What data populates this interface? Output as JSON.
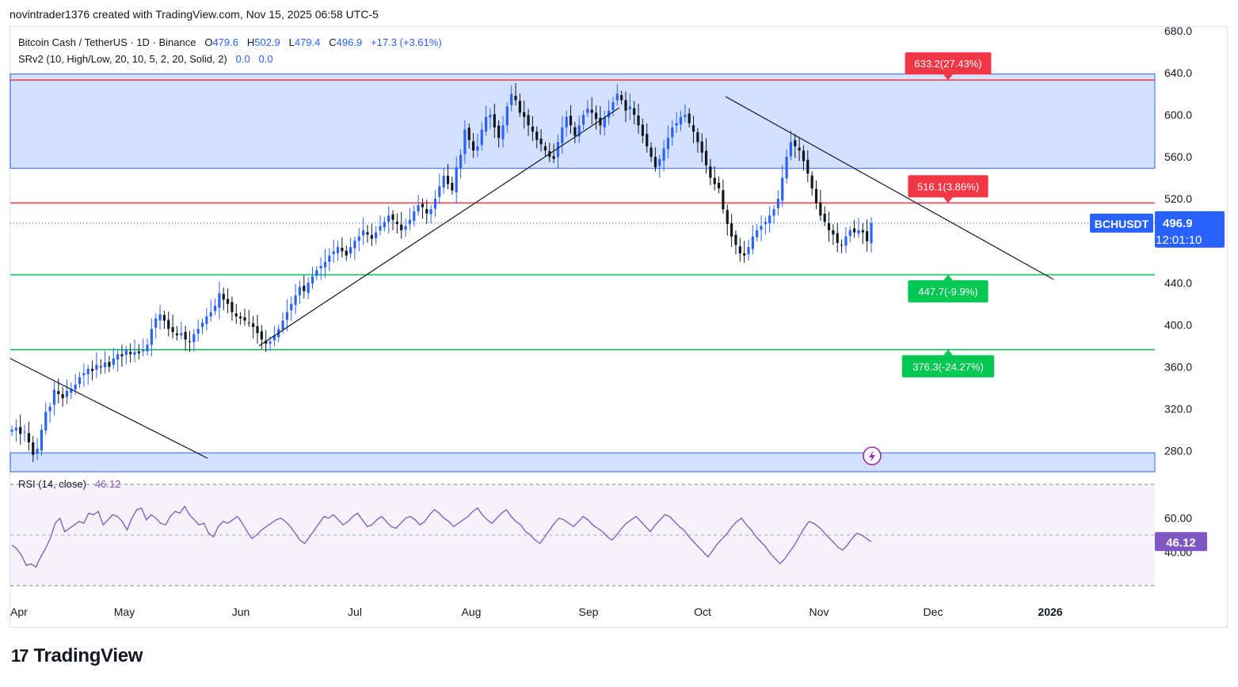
{
  "header": {
    "credit": "novintrader1376 created with TradingView.com, Nov 15, 2025 06:58 UTC-5"
  },
  "legend": {
    "symbol": "Bitcoin Cash / TetherUS · 1D · Binance",
    "o_label": "O",
    "o": "479.6",
    "h_label": "H",
    "h": "502.9",
    "l_label": "L",
    "l": "479.4",
    "c_label": "C",
    "c": "496.9",
    "change": "+17.3 (+3.61%)",
    "indicator": "SRv2 (10, High/Low, 20, 10, 5, 2, 20, Solid, 2)",
    "ind_v1": "0.0",
    "ind_v2": "0.0"
  },
  "rsi_legend": {
    "label": "RSI (14, close)",
    "value": "46.12"
  },
  "footer": {
    "brand": "TradingView",
    "logo_mark": "17"
  },
  "chart_data": {
    "type": "candlestick",
    "symbol": "BCHUSDT",
    "last_price": "496.9",
    "countdown": "12:01:10",
    "y_ticks": [
      "680.0",
      "640.0",
      "600.0",
      "560.0",
      "520.0",
      "440.0",
      "400.0",
      "360.0",
      "320.0",
      "280.0"
    ],
    "x_ticks": [
      "Apr",
      "May",
      "Jun",
      "Jul",
      "Aug",
      "Sep",
      "Oct",
      "Nov",
      "Dec",
      "2026"
    ],
    "price_range": [
      260,
      680
    ],
    "zones": [
      {
        "from": 549,
        "to": 639
      },
      {
        "from": 260,
        "to": 278
      }
    ],
    "levels": [
      {
        "price": 633.2,
        "label": "633.2(27.43%)",
        "color": "#f23645"
      },
      {
        "price": 516.1,
        "label": "516.1(3.86%)",
        "color": "#f23645"
      },
      {
        "price": 447.7,
        "label": "447.7(-9.9%)",
        "color": "#00c853"
      },
      {
        "price": 376.3,
        "label": "376.3(-24.27%)",
        "color": "#00c853"
      }
    ],
    "trendlines": [
      {
        "from": [
          "Apr 1",
          366
        ],
        "to": [
          "May 25",
          298
        ]
      },
      {
        "from": [
          "Jun 1",
          378
        ],
        "to": [
          "Sep 1",
          610
        ]
      },
      {
        "from": [
          "Oct 1",
          614
        ],
        "to": [
          "Dec 20",
          443
        ]
      }
    ],
    "close": [
      300,
      302,
      296,
      298,
      288,
      276,
      282,
      300,
      317,
      322,
      338,
      334,
      330,
      337,
      339,
      343,
      350,
      354,
      358,
      356,
      362,
      360,
      364,
      360,
      368,
      372,
      370,
      376,
      372,
      374,
      373,
      376,
      381,
      396,
      406,
      410,
      404,
      396,
      393,
      390,
      392,
      386,
      384,
      391,
      396,
      402,
      408,
      412,
      418,
      430,
      424,
      420,
      412,
      408,
      406,
      404,
      402,
      398,
      392,
      386,
      382,
      384,
      390,
      396,
      404,
      412,
      420,
      428,
      436,
      432,
      440,
      446,
      452,
      456,
      460,
      466,
      470,
      474,
      470,
      466,
      474,
      480,
      484,
      490,
      486,
      482,
      488,
      494,
      498,
      504,
      500,
      496,
      490,
      494,
      500,
      508,
      514,
      512,
      506,
      510,
      520,
      532,
      542,
      534,
      528,
      550,
      562,
      586,
      576,
      566,
      570,
      586,
      598,
      600,
      588,
      578,
      590,
      608,
      620,
      614,
      602,
      598,
      590,
      584,
      576,
      572,
      566,
      560,
      558,
      574,
      588,
      598,
      590,
      580,
      590,
      600,
      606,
      602,
      596,
      590,
      598,
      604,
      612,
      620,
      614,
      604,
      608,
      600,
      590,
      580,
      570,
      560,
      550,
      558,
      568,
      578,
      588,
      592,
      598,
      600,
      592,
      584,
      574,
      564,
      552,
      540,
      534,
      530,
      510,
      496,
      484,
      476,
      468,
      466,
      474,
      484,
      490,
      494,
      498,
      504,
      510,
      520,
      540,
      560,
      574,
      570,
      566,
      556,
      544,
      530,
      516,
      504,
      498,
      490,
      486,
      478,
      476,
      484,
      490,
      488,
      490,
      488,
      479.6,
      496.9
    ],
    "rsi": [
      44,
      42,
      38,
      32,
      33,
      31,
      37,
      42,
      48,
      57,
      60,
      52,
      54,
      56,
      58,
      57,
      63,
      62,
      64,
      56,
      59,
      62,
      61,
      58,
      53,
      60,
      65,
      66,
      59,
      62,
      60,
      57,
      56,
      61,
      64,
      63,
      67,
      62,
      59,
      56,
      57,
      51,
      49,
      55,
      58,
      57,
      59,
      61,
      57,
      52,
      48,
      50,
      53,
      55,
      57,
      59,
      60,
      58,
      55,
      51,
      47,
      45,
      49,
      53,
      57,
      61,
      60,
      62,
      59,
      56,
      58,
      61,
      63,
      59,
      55,
      56,
      59,
      61,
      58,
      55,
      54,
      57,
      60,
      61,
      59,
      56,
      58,
      62,
      65,
      63,
      60,
      58,
      55,
      57,
      59,
      61,
      64,
      66,
      62,
      59,
      57,
      60,
      63,
      65,
      61,
      58,
      56,
      52,
      50,
      47,
      45,
      49,
      53,
      57,
      60,
      59,
      57,
      55,
      58,
      61,
      59,
      56,
      54,
      52,
      49,
      47,
      50,
      54,
      57,
      59,
      61,
      58,
      55,
      52,
      56,
      59,
      62,
      61,
      58,
      55,
      53,
      49,
      46,
      43,
      40,
      37,
      41,
      45,
      48,
      51,
      55,
      58,
      60,
      56,
      53,
      49,
      46,
      43,
      39,
      36,
      33,
      36,
      40,
      44,
      49,
      54,
      58,
      57,
      55,
      52,
      49,
      46,
      43,
      41,
      44,
      48,
      51,
      50,
      48,
      46
    ]
  }
}
